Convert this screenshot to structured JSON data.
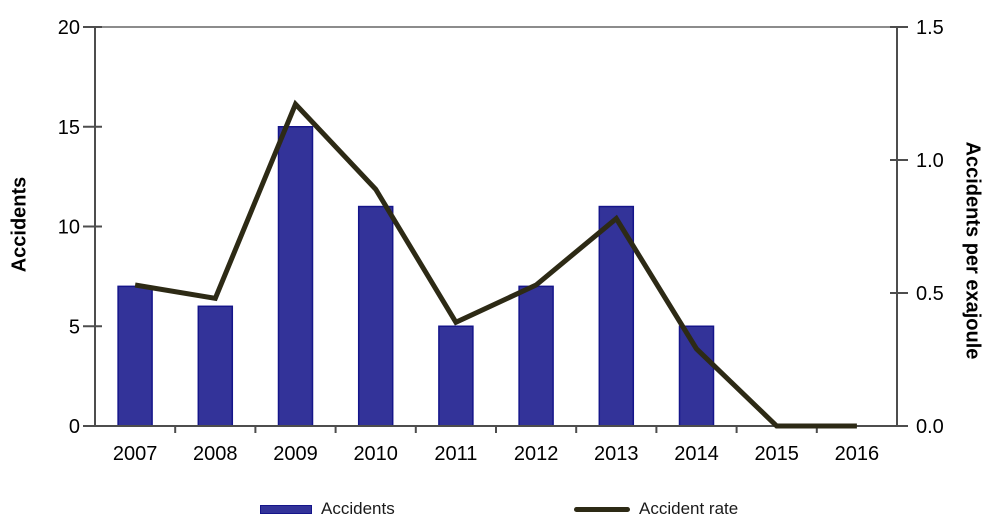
{
  "chart_data": {
    "type": "bar",
    "combo": "bar+line",
    "categories": [
      "2007",
      "2008",
      "2009",
      "2010",
      "2011",
      "2012",
      "2013",
      "2014",
      "2015",
      "2016"
    ],
    "series": [
      {
        "name": "Accidents",
        "type": "bar",
        "axis": "left",
        "values": [
          7,
          6,
          15,
          11,
          5,
          7,
          11,
          5,
          0,
          0
        ],
        "color": "#333399",
        "border_color": "#15158a"
      },
      {
        "name": "Accident rate",
        "type": "line",
        "axis": "right",
        "values": [
          0.53,
          0.48,
          1.21,
          0.89,
          0.39,
          0.53,
          0.78,
          0.29,
          0,
          0
        ],
        "color": "#2d2a15"
      }
    ],
    "left_axis": {
      "label": "Accidents",
      "min": 0,
      "max": 20,
      "tick_labels": [
        "0",
        "5",
        "10",
        "15",
        "20"
      ]
    },
    "right_axis": {
      "label": "Accidents per exajoule",
      "min": 0,
      "max": 1.5,
      "tick_labels": [
        "0.0",
        "0.5",
        "1.0",
        "1.5"
      ]
    },
    "legend_position": "bottom",
    "grid": "off",
    "colors": {
      "axis_line": "#4d4d4d",
      "top_border": "#8c8c8c",
      "tick_text": "#000000"
    }
  }
}
